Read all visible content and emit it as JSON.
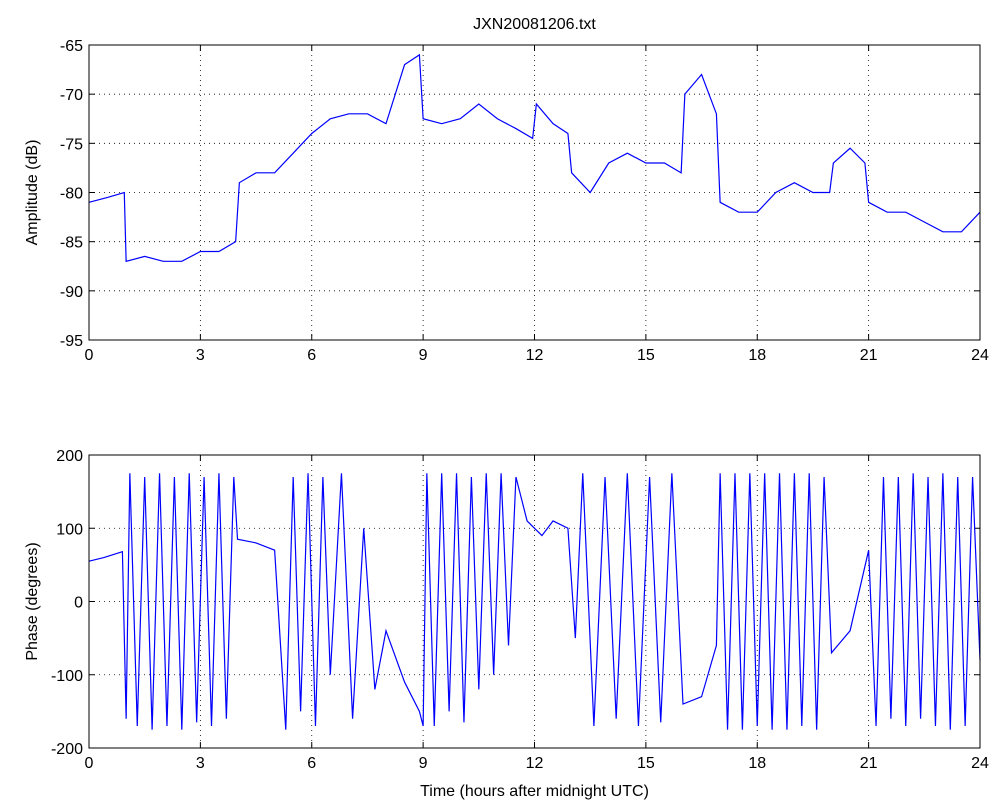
{
  "chart_data": [
    {
      "type": "line",
      "title": "JXN20081206.txt",
      "ylabel": "Amplitude (dB)",
      "color": "#0000ff",
      "grid": true,
      "xlim": [
        0,
        24
      ],
      "xticks": [
        0,
        3,
        6,
        9,
        12,
        15,
        18,
        21,
        24
      ],
      "ylim": [
        -95,
        -65
      ],
      "yticks": [
        -95,
        -90,
        -85,
        -80,
        -75,
        -70,
        -65
      ],
      "x": [
        0,
        0.5,
        0.95,
        1.0,
        1.5,
        2,
        2.5,
        3,
        3.5,
        3.95,
        4.05,
        4.5,
        5,
        5.5,
        6,
        6.5,
        7,
        7.5,
        8,
        8.5,
        8.9,
        9.0,
        9.5,
        10,
        10.5,
        11,
        11.5,
        11.95,
        12.05,
        12.5,
        12.9,
        13.0,
        13.5,
        14,
        14.5,
        15,
        15.5,
        15.95,
        16.05,
        16.5,
        16.9,
        17.0,
        17.5,
        18,
        18.5,
        19,
        19.5,
        19.95,
        20.05,
        20.5,
        20.9,
        21.0,
        21.5,
        22,
        22.5,
        23,
        23.5,
        24
      ],
      "values": [
        -81,
        -80.5,
        -80,
        -87,
        -86.5,
        -87,
        -87,
        -86,
        -86,
        -85,
        -79,
        -78,
        -78,
        -76,
        -74,
        -72.5,
        -72,
        -72,
        -73,
        -67,
        -66,
        -72.5,
        -73,
        -72.5,
        -71,
        -72.5,
        -73.5,
        -74.5,
        -71,
        -73,
        -74,
        -78,
        -80,
        -77,
        -76,
        -77,
        -77,
        -78,
        -70,
        -68,
        -72,
        -81,
        -82,
        -82,
        -80,
        -79,
        -80,
        -80,
        -77,
        -75.5,
        -77,
        -81,
        -82,
        -82,
        -83,
        -84,
        -84,
        -82
      ]
    },
    {
      "type": "line",
      "xlabel": "Time (hours after midnight UTC)",
      "ylabel": "Phase (degrees)",
      "color": "#0000ff",
      "grid": true,
      "xlim": [
        0,
        24
      ],
      "xticks": [
        0,
        3,
        6,
        9,
        12,
        15,
        18,
        21,
        24
      ],
      "ylim": [
        -200,
        200
      ],
      "yticks": [
        -200,
        -100,
        0,
        100,
        200
      ],
      "x": [
        0,
        0.4,
        0.9,
        1.0,
        1.1,
        1.3,
        1.5,
        1.7,
        1.9,
        2.1,
        2.3,
        2.5,
        2.7,
        2.9,
        3.1,
        3.3,
        3.5,
        3.7,
        3.9,
        4.0,
        4.5,
        5.0,
        5.3,
        5.5,
        5.7,
        5.9,
        6.1,
        6.3,
        6.5,
        6.8,
        7.1,
        7.4,
        7.7,
        8.0,
        8.5,
        8.9,
        9.0,
        9.1,
        9.3,
        9.5,
        9.7,
        9.9,
        10.1,
        10.3,
        10.5,
        10.7,
        10.9,
        11.1,
        11.3,
        11.5,
        11.8,
        12.2,
        12.5,
        12.9,
        13.1,
        13.3,
        13.6,
        13.9,
        14.2,
        14.5,
        14.8,
        15.1,
        15.4,
        15.7,
        16.0,
        16.5,
        16.9,
        17.0,
        17.2,
        17.4,
        17.6,
        17.8,
        18.0,
        18.2,
        18.4,
        18.6,
        18.8,
        19.0,
        19.2,
        19.4,
        19.6,
        19.8,
        20.0,
        20.5,
        21.0,
        21.2,
        21.4,
        21.6,
        21.8,
        22.0,
        22.2,
        22.4,
        22.6,
        22.8,
        23.0,
        23.2,
        23.4,
        23.6,
        23.8,
        24.0
      ],
      "values": [
        55,
        60,
        68,
        -160,
        175,
        -170,
        170,
        -175,
        175,
        -170,
        170,
        -175,
        175,
        -165,
        170,
        -170,
        175,
        -160,
        170,
        85,
        80,
        70,
        -175,
        170,
        -150,
        175,
        -170,
        170,
        -100,
        175,
        -160,
        100,
        -120,
        -40,
        -110,
        -150,
        -170,
        175,
        -170,
        175,
        -150,
        175,
        -165,
        170,
        -120,
        175,
        -100,
        175,
        -60,
        170,
        110,
        90,
        110,
        100,
        -50,
        175,
        -170,
        170,
        -160,
        175,
        -170,
        170,
        -165,
        175,
        -140,
        -130,
        -60,
        175,
        -175,
        175,
        -175,
        175,
        -170,
        175,
        -175,
        175,
        -175,
        175,
        -170,
        175,
        -175,
        170,
        -70,
        -40,
        70,
        -170,
        170,
        -160,
        170,
        -170,
        175,
        -160,
        170,
        -170,
        175,
        -175,
        170,
        -170,
        170,
        -80
      ]
    }
  ]
}
